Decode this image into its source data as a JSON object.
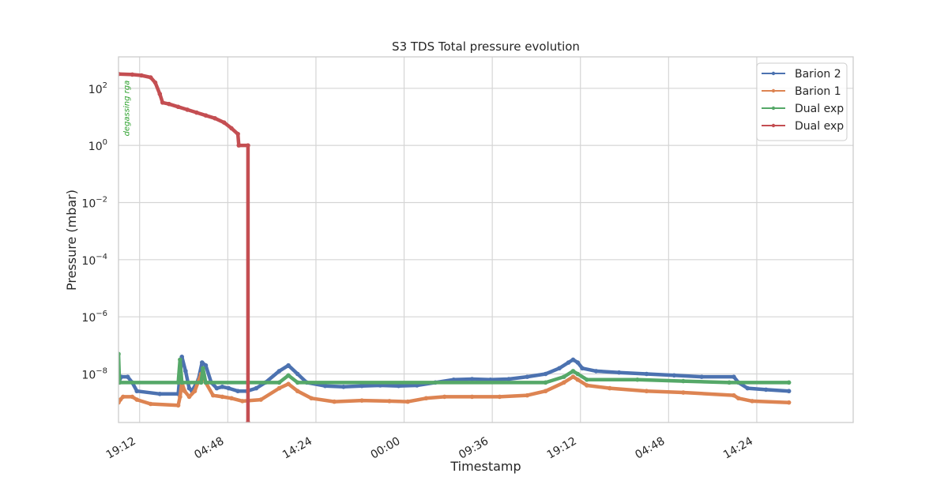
{
  "chart_data": {
    "type": "line",
    "title": "S3 TDS Total pressure evolution",
    "xlabel": "Timestamp",
    "ylabel": "Pressure (mbar)",
    "y_scale": "log",
    "ylim_exponents": [
      -9.7,
      3.1
    ],
    "x_range_hours": [
      -1.5,
      78.5
    ],
    "x_tick_labels": [
      "19:12",
      "04:48",
      "14:24",
      "00:00",
      "09:36",
      "19:12",
      "04:48",
      "14:24"
    ],
    "x_tick_hours": [
      0.8,
      10.4,
      20.0,
      29.6,
      39.2,
      48.8,
      58.4,
      68.0
    ],
    "y_tick_exponents": [
      -8,
      -6,
      -4,
      -2,
      0,
      2
    ],
    "y_tick_base": "10",
    "grid": true,
    "legend_position": "top-right",
    "annotation": {
      "text": "degassing rga",
      "x_hour": -1.2,
      "log10_y": 1.3,
      "color": "#2ca02c"
    },
    "series": [
      {
        "name": "Barion 2",
        "color": "#4c72b0",
        "points": [
          [
            -1.5,
            -8.3
          ],
          [
            -1.2,
            -8.1
          ],
          [
            -0.5,
            -8.1
          ],
          [
            0,
            -8.3
          ],
          [
            0.5,
            -8.6
          ],
          [
            3,
            -8.7
          ],
          [
            5,
            -8.7
          ],
          [
            5.2,
            -8.0
          ],
          [
            5.4,
            -7.4
          ],
          [
            5.8,
            -7.9
          ],
          [
            6.2,
            -8.5
          ],
          [
            6.5,
            -8.6
          ],
          [
            7.2,
            -8.2
          ],
          [
            7.6,
            -7.6
          ],
          [
            8.0,
            -7.7
          ],
          [
            8.6,
            -8.3
          ],
          [
            9.2,
            -8.5
          ],
          [
            9.8,
            -8.45
          ],
          [
            10.5,
            -8.5
          ],
          [
            11.5,
            -8.6
          ],
          [
            12.5,
            -8.6
          ],
          [
            13.5,
            -8.5
          ],
          [
            14.5,
            -8.3
          ],
          [
            16,
            -7.9
          ],
          [
            17,
            -7.7
          ],
          [
            18,
            -8.0
          ],
          [
            19,
            -8.3
          ],
          [
            21,
            -8.42
          ],
          [
            23,
            -8.45
          ],
          [
            25,
            -8.42
          ],
          [
            27,
            -8.4
          ],
          [
            29,
            -8.42
          ],
          [
            31,
            -8.4
          ],
          [
            33,
            -8.3
          ],
          [
            35,
            -8.2
          ],
          [
            37,
            -8.18
          ],
          [
            39,
            -8.2
          ],
          [
            41,
            -8.18
          ],
          [
            43,
            -8.1
          ],
          [
            45,
            -8.0
          ],
          [
            46.5,
            -7.8
          ],
          [
            47.5,
            -7.6
          ],
          [
            48,
            -7.5
          ],
          [
            48.5,
            -7.6
          ],
          [
            49,
            -7.8
          ],
          [
            50.5,
            -7.9
          ],
          [
            53,
            -7.95
          ],
          [
            56,
            -8.0
          ],
          [
            59,
            -8.05
          ],
          [
            62,
            -8.1
          ],
          [
            65.5,
            -8.1
          ],
          [
            66,
            -8.3
          ],
          [
            67,
            -8.5
          ],
          [
            69,
            -8.55
          ],
          [
            71.5,
            -8.6
          ]
        ],
        "markers": true
      },
      {
        "name": "Barion 1",
        "color": "#dd8452",
        "points": [
          [
            -1.5,
            -9.0
          ],
          [
            -1.3,
            -8.9
          ],
          [
            -1.0,
            -8.8
          ],
          [
            0,
            -8.8
          ],
          [
            0.5,
            -8.9
          ],
          [
            2,
            -9.05
          ],
          [
            5,
            -9.1
          ],
          [
            5.2,
            -8.8
          ],
          [
            5.4,
            -8.3
          ],
          [
            5.7,
            -8.6
          ],
          [
            6.2,
            -8.8
          ],
          [
            6.8,
            -8.6
          ],
          [
            7.5,
            -8.0
          ],
          [
            8.0,
            -8.3
          ],
          [
            8.8,
            -8.75
          ],
          [
            9.8,
            -8.8
          ],
          [
            10.8,
            -8.85
          ],
          [
            12,
            -8.95
          ],
          [
            14,
            -8.9
          ],
          [
            16,
            -8.5
          ],
          [
            17,
            -8.35
          ],
          [
            18,
            -8.6
          ],
          [
            19.5,
            -8.85
          ],
          [
            22,
            -8.97
          ],
          [
            25,
            -8.93
          ],
          [
            28,
            -8.95
          ],
          [
            30,
            -8.97
          ],
          [
            32,
            -8.85
          ],
          [
            34,
            -8.8
          ],
          [
            37,
            -8.8
          ],
          [
            40,
            -8.8
          ],
          [
            43,
            -8.75
          ],
          [
            45,
            -8.6
          ],
          [
            47,
            -8.3
          ],
          [
            48,
            -8.1
          ],
          [
            48.5,
            -8.2
          ],
          [
            49.5,
            -8.4
          ],
          [
            52,
            -8.5
          ],
          [
            56,
            -8.6
          ],
          [
            60,
            -8.65
          ],
          [
            65.5,
            -8.75
          ],
          [
            66,
            -8.85
          ],
          [
            67.5,
            -8.95
          ],
          [
            71.5,
            -9.0
          ]
        ],
        "markers": true
      },
      {
        "name": "Dual exp",
        "color": "#55a868",
        "points": [
          [
            -1.5,
            -7.3
          ],
          [
            -1.4,
            -8.3
          ],
          [
            5.0,
            -8.3
          ],
          [
            5.2,
            -7.5
          ],
          [
            5.4,
            -8.3
          ],
          [
            7.5,
            -8.3
          ],
          [
            7.7,
            -7.8
          ],
          [
            8.0,
            -8.3
          ],
          [
            16,
            -8.3
          ],
          [
            17,
            -8.05
          ],
          [
            18,
            -8.3
          ],
          [
            45,
            -8.3
          ],
          [
            47,
            -8.1
          ],
          [
            48,
            -7.9
          ],
          [
            48.5,
            -8.0
          ],
          [
            49.5,
            -8.2
          ],
          [
            55,
            -8.2
          ],
          [
            60,
            -8.25
          ],
          [
            65,
            -8.3
          ],
          [
            71.5,
            -8.3
          ]
        ],
        "markers": true
      },
      {
        "name": "Dual exp",
        "color": "#c44e52",
        "points": [
          [
            -1.5,
            2.5
          ],
          [
            0,
            2.48
          ],
          [
            1,
            2.45
          ],
          [
            2,
            2.38
          ],
          [
            2.5,
            2.2
          ],
          [
            3,
            1.8
          ],
          [
            3.3,
            1.5
          ],
          [
            4,
            1.45
          ],
          [
            5,
            1.35
          ],
          [
            6,
            1.25
          ],
          [
            7,
            1.15
          ],
          [
            8,
            1.05
          ],
          [
            9,
            0.95
          ],
          [
            10,
            0.8
          ],
          [
            10.8,
            0.6
          ],
          [
            11.5,
            0.4
          ],
          [
            11.6,
            0.0
          ],
          [
            12.6,
            0.0
          ],
          [
            12.6,
            -9.7
          ]
        ],
        "markers": true
      }
    ]
  }
}
